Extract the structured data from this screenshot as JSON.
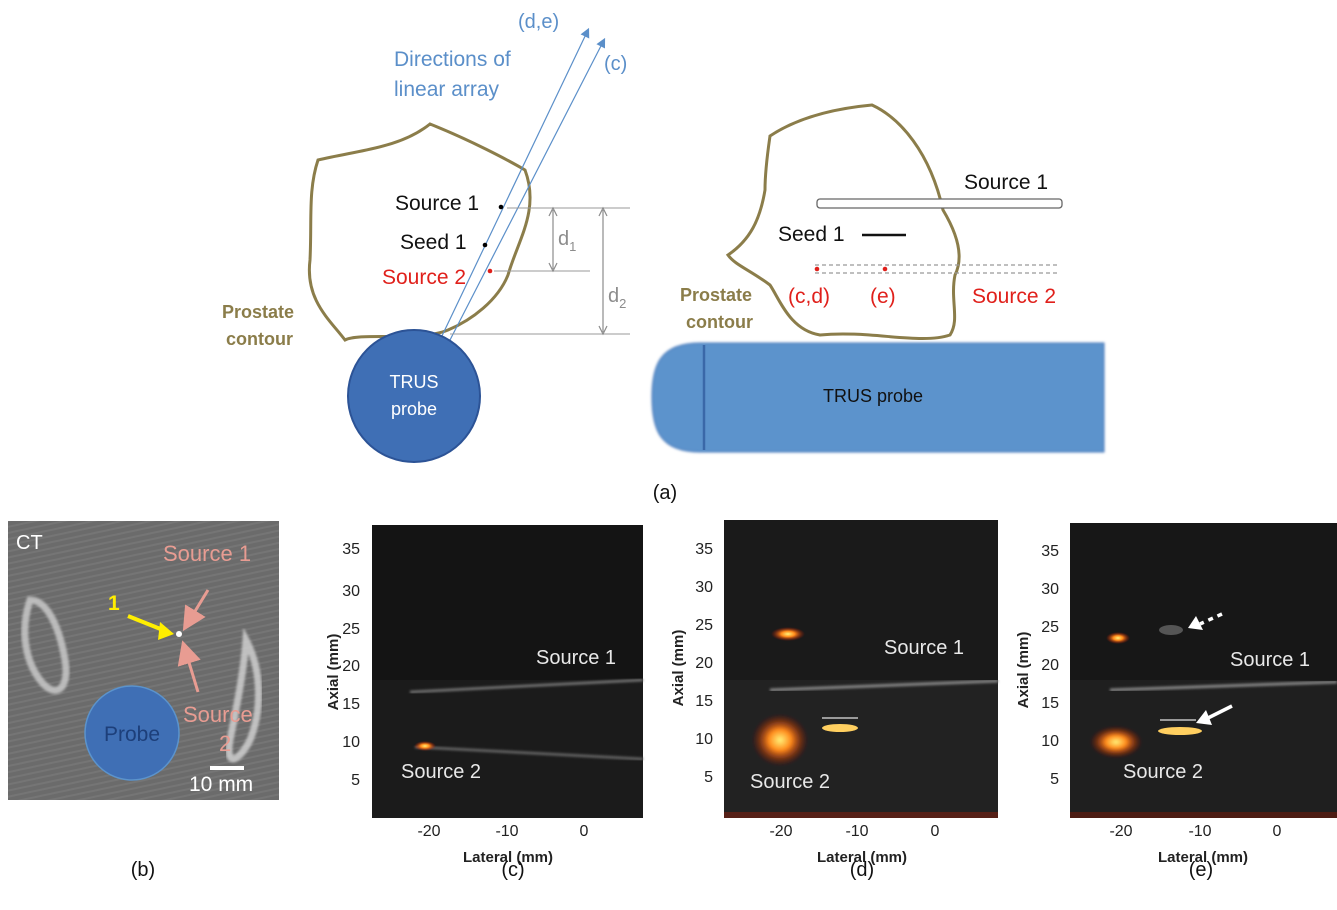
{
  "panel_a": {
    "label": "(a)",
    "left": {
      "dir_de": "(d,e)",
      "dir_c": "(c)",
      "directions_line1": "Directions of",
      "directions_line2": "linear array",
      "source1": "Source 1",
      "seed1": "Seed 1",
      "source2": "Source 2",
      "d1_main": "d",
      "d1_sub": "1",
      "d2_main": "d",
      "d2_sub": "2",
      "prostate_line1": "Prostate",
      "prostate_line2": "contour",
      "probe_line1": "TRUS",
      "probe_line2": "probe"
    },
    "right": {
      "source1": "Source 1",
      "seed1": "Seed 1",
      "cd": "(c,d)",
      "e": "(e)",
      "source2": "Source 2",
      "prostate_line1": "Prostate",
      "prostate_line2": "contour",
      "probe": "TRUS probe"
    }
  },
  "panel_b": {
    "label": "(b)",
    "ct": "CT",
    "source1": "Source 1",
    "marker": "1",
    "source2_line1": "Source",
    "source2_line2": "2",
    "probe": "Probe",
    "scale": "10 mm"
  },
  "us_panels": {
    "xlabel": "Lateral (mm)",
    "ylabel": "Axial (mm)",
    "xticks": [
      "-20",
      "-10",
      "0"
    ],
    "yticks": [
      "5",
      "10",
      "15",
      "20",
      "25",
      "30",
      "35"
    ],
    "c": {
      "label": "(c)",
      "source1": "Source 1",
      "source2": "Source 2"
    },
    "d": {
      "label": "(d)",
      "source1": "Source 1",
      "source2": "Source 2"
    },
    "e": {
      "label": "(e)",
      "source1": "Source 1",
      "source2": "Source 2"
    }
  },
  "colors": {
    "contour": "#8b7d4a",
    "probe_fill": "#3f6fb5",
    "probe_rect": "#5b93cc",
    "blue_text": "#5b8fc9",
    "red_text": "#e0201b",
    "gray_dim": "#8c8c8c",
    "pink": "#e89c92",
    "yellow": "#ffee00"
  }
}
